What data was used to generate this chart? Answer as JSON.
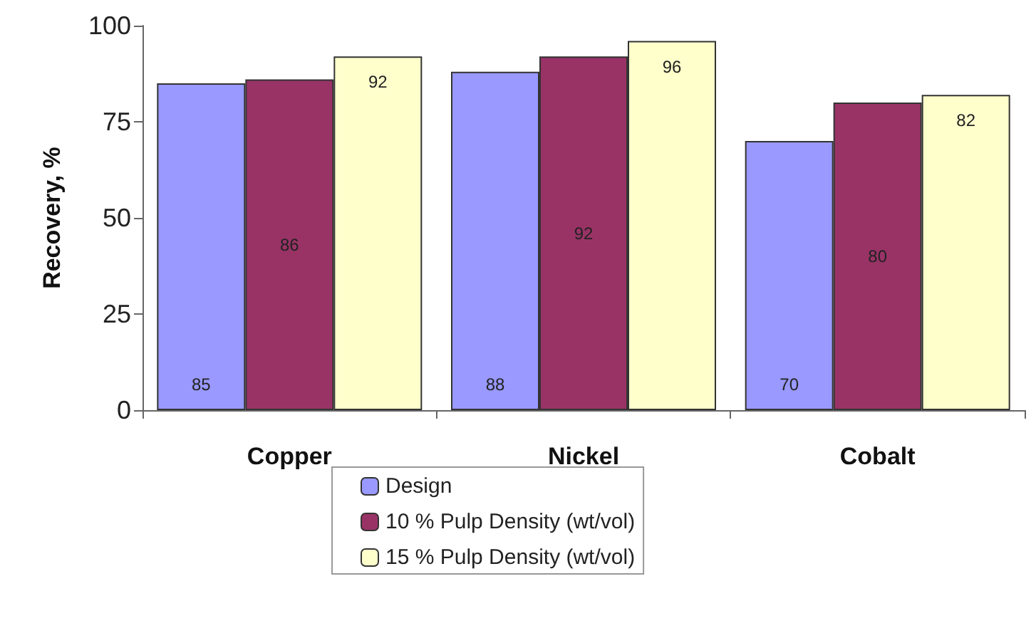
{
  "chart_data": {
    "type": "bar",
    "ylabel": "Recovery, %",
    "categories": [
      "Copper",
      "Nickel",
      "Cobalt"
    ],
    "series": [
      {
        "name": "Design",
        "color": "#9999ff",
        "values": [
          85,
          88,
          70
        ]
      },
      {
        "name": "10 % Pulp Density (wt/vol)",
        "color": "#993366",
        "values": [
          86,
          92,
          80
        ]
      },
      {
        "name": "15 % Pulp Density (wt/vol)",
        "color": "#ffffcc",
        "values": [
          92,
          96,
          82
        ]
      }
    ],
    "ylim": [
      0,
      100
    ],
    "yticks": [
      0,
      25,
      50,
      75,
      100
    ],
    "grid": false,
    "legend": "bottom",
    "data_labels": true
  }
}
